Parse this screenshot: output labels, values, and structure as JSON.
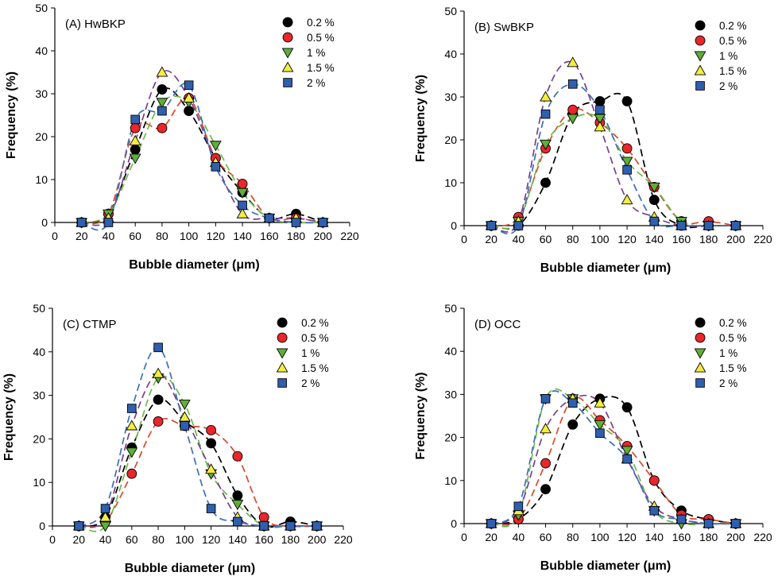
{
  "chart_data": [
    {
      "type": "scatter",
      "title": "(A) HwBKP",
      "xlabel": "Bubble diameter (μm)",
      "ylabel": "Frequency (%)",
      "xlim": [
        0,
        220
      ],
      "ylim": [
        0,
        50
      ],
      "xticks": [
        0,
        20,
        40,
        60,
        80,
        100,
        120,
        140,
        160,
        180,
        200,
        220
      ],
      "yticks": [
        0,
        10,
        20,
        30,
        40,
        50
      ],
      "x": [
        20,
        40,
        60,
        80,
        100,
        120,
        140,
        160,
        180,
        200
      ],
      "legend_position": "top-right",
      "series": [
        {
          "name": "0.2 %",
          "marker": "circle",
          "color": "#000000",
          "line_color": "#000000",
          "values": [
            0,
            2,
            17,
            31,
            26,
            15,
            7,
            1,
            2,
            0
          ]
        },
        {
          "name": "0.5 %",
          "marker": "circle",
          "color": "#e8262b",
          "line_color": "#d94a2a",
          "values": [
            0,
            2,
            22,
            22,
            29,
            15,
            9,
            1,
            1,
            0
          ]
        },
        {
          "name": "1 %",
          "marker": "triangle-down",
          "color": "#5fae3a",
          "line_color": "#6fb84a",
          "values": [
            0,
            2,
            15,
            28,
            28,
            18,
            7,
            1,
            0,
            0
          ]
        },
        {
          "name": "1.5 %",
          "marker": "triangle-up",
          "color": "#f3ee3e",
          "line_color": "#7a3f8f",
          "values": [
            0,
            1,
            19,
            35,
            29,
            14,
            2,
            1,
            1,
            0
          ]
        },
        {
          "name": "2 %",
          "marker": "square",
          "color": "#2f5fae",
          "line_color": "#3d6fb8",
          "values": [
            0,
            0,
            24,
            26,
            32,
            13,
            4,
            1,
            0,
            0
          ]
        }
      ]
    },
    {
      "type": "scatter",
      "title": "(B) SwBKP",
      "xlabel": "Bubble diameter (μm)",
      "ylabel": "Frequency (%)",
      "xlim": [
        0,
        220
      ],
      "ylim": [
        0,
        50
      ],
      "xticks": [
        0,
        20,
        40,
        60,
        80,
        100,
        120,
        140,
        160,
        180,
        200,
        220
      ],
      "yticks": [
        0,
        10,
        20,
        30,
        40,
        50
      ],
      "x": [
        20,
        40,
        60,
        80,
        100,
        120,
        140,
        160,
        180,
        200
      ],
      "legend_position": "top-right",
      "series": [
        {
          "name": "0.2 %",
          "marker": "circle",
          "color": "#000000",
          "line_color": "#000000",
          "values": [
            0,
            0,
            10,
            26,
            29,
            29,
            6,
            0,
            0,
            0
          ]
        },
        {
          "name": "0.5 %",
          "marker": "circle",
          "color": "#e8262b",
          "line_color": "#d94a2a",
          "values": [
            0,
            2,
            18,
            27,
            24,
            18,
            9,
            1,
            1,
            0
          ]
        },
        {
          "name": "1 %",
          "marker": "triangle-down",
          "color": "#5fae3a",
          "line_color": "#6fb84a",
          "values": [
            0,
            1,
            19,
            25,
            25,
            15,
            9,
            1,
            0,
            0
          ]
        },
        {
          "name": "1.5 %",
          "marker": "triangle-up",
          "color": "#f3ee3e",
          "line_color": "#7a3f8f",
          "values": [
            0,
            1,
            30,
            38,
            23,
            6,
            2,
            0,
            0,
            0
          ]
        },
        {
          "name": "2 %",
          "marker": "square",
          "color": "#2f5fae",
          "line_color": "#3d6fb8",
          "values": [
            0,
            0,
            26,
            33,
            27,
            13,
            1,
            0,
            0,
            0
          ]
        }
      ]
    },
    {
      "type": "scatter",
      "title": "(C) CTMP",
      "xlabel": "Bubble diameter (μm)",
      "ylabel": "Frequency (%)",
      "xlim": [
        0,
        220
      ],
      "ylim": [
        0,
        50
      ],
      "xticks": [
        0,
        20,
        40,
        60,
        80,
        100,
        120,
        140,
        160,
        180,
        200,
        220
      ],
      "yticks": [
        0,
        10,
        20,
        30,
        40,
        50
      ],
      "x": [
        20,
        40,
        60,
        80,
        100,
        120,
        140,
        160,
        180,
        200
      ],
      "legend_position": "top-right",
      "series": [
        {
          "name": "0.2 %",
          "marker": "circle",
          "color": "#000000",
          "line_color": "#000000",
          "values": [
            0,
            2,
            18,
            29,
            24,
            19,
            7,
            0,
            1,
            0
          ]
        },
        {
          "name": "0.5 %",
          "marker": "circle",
          "color": "#e8262b",
          "line_color": "#d94a2a",
          "values": [
            0,
            1,
            12,
            24,
            23,
            22,
            16,
            2,
            0,
            0
          ]
        },
        {
          "name": "1 %",
          "marker": "triangle-down",
          "color": "#5fae3a",
          "line_color": "#6fb84a",
          "values": [
            0,
            0,
            17,
            34,
            28,
            12,
            5,
            0,
            0,
            0
          ]
        },
        {
          "name": "1.5 %",
          "marker": "triangle-up",
          "color": "#f3ee3e",
          "line_color": "#7a3f8f",
          "values": [
            0,
            2,
            23,
            35,
            25,
            13,
            2,
            0,
            0,
            0
          ]
        },
        {
          "name": "2 %",
          "marker": "square",
          "color": "#2f5fae",
          "line_color": "#3d6fb8",
          "values": [
            0,
            4,
            27,
            41,
            23,
            4,
            1,
            0,
            0,
            0
          ]
        }
      ]
    },
    {
      "type": "scatter",
      "title": "(D) OCC",
      "xlabel": "Bubble diameter (μm)",
      "ylabel": "Frequency (%)",
      "xlim": [
        0,
        220
      ],
      "ylim": [
        0,
        50
      ],
      "xticks": [
        0,
        20,
        40,
        60,
        80,
        100,
        120,
        140,
        160,
        180,
        200,
        220
      ],
      "yticks": [
        0,
        10,
        20,
        30,
        40,
        50
      ],
      "x": [
        20,
        40,
        60,
        80,
        100,
        120,
        140,
        160,
        180,
        200
      ],
      "legend_position": "top-right",
      "series": [
        {
          "name": "0.2 %",
          "marker": "circle",
          "color": "#000000",
          "line_color": "#000000",
          "values": [
            0,
            1,
            8,
            23,
            29,
            27,
            10,
            3,
            1,
            0
          ]
        },
        {
          "name": "0.5 %",
          "marker": "circle",
          "color": "#e8262b",
          "line_color": "#d94a2a",
          "values": [
            0,
            1,
            14,
            29,
            24,
            18,
            10,
            2,
            1,
            0
          ]
        },
        {
          "name": "1 %",
          "marker": "triangle-down",
          "color": "#5fae3a",
          "line_color": "#6fb84a",
          "values": [
            0,
            2,
            29,
            29,
            23,
            17,
            3,
            0,
            0,
            0
          ]
        },
        {
          "name": "1.5 %",
          "marker": "triangle-up",
          "color": "#f3ee3e",
          "line_color": "#7a3f8f",
          "values": [
            0,
            3,
            22,
            29,
            28,
            15,
            4,
            1,
            0,
            0
          ]
        },
        {
          "name": "2 %",
          "marker": "square",
          "color": "#2f5fae",
          "line_color": "#3d6fb8",
          "values": [
            0,
            4,
            29,
            28,
            21,
            15,
            3,
            1,
            0,
            0
          ]
        }
      ]
    }
  ]
}
